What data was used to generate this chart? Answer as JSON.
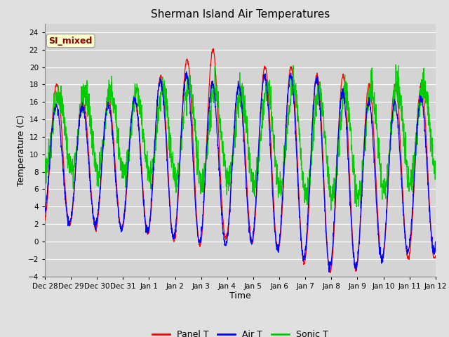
{
  "title": "Sherman Island Air Temperatures",
  "xlabel": "Time",
  "ylabel": "Temperature (C)",
  "ylim": [
    -4,
    25
  ],
  "yticks": [
    -4,
    -2,
    0,
    2,
    4,
    6,
    8,
    10,
    12,
    14,
    16,
    18,
    20,
    22,
    24
  ],
  "xtick_labels": [
    "Dec 28",
    "Dec 29",
    "Dec 30",
    "Dec 31",
    "Jan 1",
    "Jan 2",
    "Jan 3",
    "Jan 4",
    "Jan 5",
    "Jan 6",
    "Jan 7",
    "Jan 8",
    "Jan 9",
    "Jan 10",
    "Jan 11",
    "Jan 12"
  ],
  "bg_color": "#e0e0e0",
  "plot_bg_color": "#d4d4d4",
  "annotation_text": "SI_mixed",
  "annotation_color": "#8b0000",
  "annotation_bg": "#ffffcc",
  "colors": {
    "panel": "#ff0000",
    "air": "#0000ff",
    "sonic": "#00cc00"
  },
  "legend_labels": [
    "Panel T",
    "Air T",
    "Sonic T"
  ]
}
